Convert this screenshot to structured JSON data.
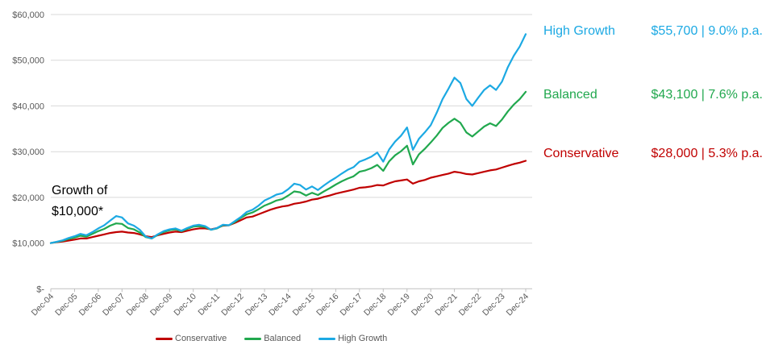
{
  "title": {
    "line1": "Growth of",
    "line2": "$10,000*"
  },
  "colors": {
    "conservative": "#C00000",
    "balanced": "#21A84E",
    "high_growth": "#1CA9E3",
    "axis_text": "#595959",
    "gridline": "#D9D9D9",
    "axis_line": "#BFBFBF"
  },
  "callouts": [
    {
      "name": "High Growth",
      "value_text": "$55,700 | 9.0% p.a."
    },
    {
      "name": "Balanced",
      "value_text": "$43,100 | 7.6% p.a."
    },
    {
      "name": "Conservative",
      "value_text": "$28,000 | 5.3% p.a."
    }
  ],
  "legend": [
    {
      "label": "Conservative"
    },
    {
      "label": "Balanced"
    },
    {
      "label": "High Growth"
    }
  ],
  "chart_data": {
    "type": "line",
    "title": "Growth of $10,000*",
    "xlabel": "",
    "ylabel": "",
    "ylim": [
      0,
      60000
    ],
    "grid": "horizontal",
    "legend_position": "bottom",
    "x_frequency": "quarterly",
    "x_range": [
      "Dec-04",
      "Dec-24"
    ],
    "x_tick_labels": [
      "Dec-04",
      "Dec-05",
      "Dec-06",
      "Dec-07",
      "Dec-08",
      "Dec-09",
      "Dec-10",
      "Dec-11",
      "Dec-12",
      "Dec-13",
      "Dec-14",
      "Dec-15",
      "Dec-16",
      "Dec-17",
      "Dec-18",
      "Dec-19",
      "Dec-20",
      "Dec-21",
      "Dec-22",
      "Dec-23",
      "Dec-24"
    ],
    "y_tick_labels": [
      "$-",
      "$10,000",
      "$20,000",
      "$30,000",
      "$40,000",
      "$50,000",
      "$60,000"
    ],
    "series": [
      {
        "name": "Conservative",
        "color": "#C00000",
        "final_value": 28000,
        "annual_return_pa": "5.3%",
        "values": [
          10000,
          10200,
          10350,
          10550,
          10750,
          11000,
          11000,
          11300,
          11600,
          11900,
          12200,
          12400,
          12500,
          12300,
          12200,
          11900,
          11500,
          11300,
          11700,
          12000,
          12300,
          12500,
          12400,
          12700,
          13000,
          13200,
          13200,
          13000,
          13300,
          13800,
          13900,
          14400,
          15000,
          15600,
          15800,
          16300,
          16800,
          17300,
          17700,
          18000,
          18200,
          18600,
          18800,
          19100,
          19500,
          19700,
          20100,
          20400,
          20800,
          21100,
          21400,
          21700,
          22100,
          22200,
          22400,
          22700,
          22600,
          23100,
          23500,
          23700,
          23900,
          23000,
          23500,
          23800,
          24300,
          24600,
          24900,
          25200,
          25600,
          25400,
          25100,
          25000,
          25300,
          25600,
          25900,
          26100,
          26500,
          26900,
          27300,
          27600,
          28000
        ]
      },
      {
        "name": "Balanced",
        "color": "#21A84E",
        "final_value": 43100,
        "annual_return_pa": "7.6%",
        "values": [
          10000,
          10250,
          10500,
          10900,
          11200,
          11600,
          11400,
          12000,
          12600,
          13100,
          13800,
          14300,
          14200,
          13300,
          13000,
          12300,
          11300,
          11000,
          11800,
          12400,
          12800,
          13000,
          12600,
          13100,
          13600,
          13700,
          13500,
          12900,
          13200,
          13900,
          13900,
          14600,
          15500,
          16300,
          16700,
          17400,
          18200,
          18700,
          19300,
          19600,
          20400,
          21300,
          21100,
          20400,
          21000,
          20500,
          21300,
          22000,
          22800,
          23500,
          24100,
          24600,
          25600,
          25900,
          26400,
          27100,
          25800,
          27900,
          29200,
          30100,
          31300,
          27200,
          29400,
          30600,
          32000,
          33500,
          35200,
          36300,
          37200,
          36300,
          34200,
          33300,
          34400,
          35500,
          36200,
          35600,
          37000,
          38800,
          40300,
          41500,
          43100
        ]
      },
      {
        "name": "High Growth",
        "color": "#1CA9E3",
        "final_value": 55700,
        "annual_return_pa": "9.0%",
        "values": [
          10000,
          10300,
          10600,
          11100,
          11500,
          12000,
          11700,
          12400,
          13200,
          13900,
          14900,
          15900,
          15600,
          14300,
          13800,
          12900,
          11400,
          11000,
          11900,
          12600,
          13000,
          13200,
          12700,
          13300,
          13800,
          14000,
          13700,
          12900,
          13300,
          14000,
          13900,
          14800,
          15700,
          16800,
          17300,
          18200,
          19300,
          19900,
          20600,
          20900,
          21800,
          23000,
          22700,
          21700,
          22400,
          21600,
          22600,
          23500,
          24300,
          25200,
          26000,
          26600,
          27800,
          28300,
          28900,
          29800,
          27800,
          30500,
          32200,
          33500,
          35300,
          30400,
          32800,
          34200,
          35800,
          38500,
          41500,
          43800,
          46200,
          45000,
          41500,
          40000,
          41800,
          43500,
          44500,
          43500,
          45300,
          48500,
          51000,
          53000,
          55700
        ]
      }
    ]
  }
}
